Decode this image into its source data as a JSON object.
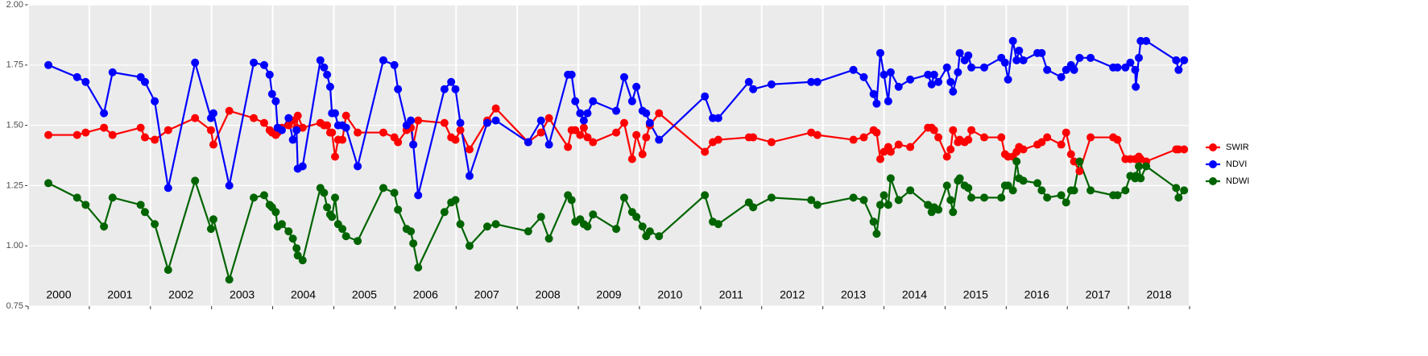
{
  "chart_data": {
    "type": "line",
    "x": [
      2000.33,
      2000.8,
      2000.94,
      2001.24,
      2001.38,
      2001.84,
      2001.91,
      2002.07,
      2002.29,
      2002.73,
      2002.99,
      2003.03,
      2003.29,
      2003.69,
      2003.86,
      2003.95,
      2003.99,
      2004.05,
      2004.08,
      2004.15,
      2004.26,
      2004.33,
      2004.39,
      2004.41,
      2004.49,
      2004.78,
      2004.84,
      2004.89,
      2004.94,
      2004.97,
      2005.02,
      2005.07,
      2005.14,
      2005.2,
      2005.39,
      2005.81,
      2005.99,
      2006.05,
      2006.19,
      2006.26,
      2006.3,
      2006.38,
      2006.81,
      2006.92,
      2006.99,
      2007.07,
      2007.22,
      2007.51,
      2007.65,
      2008.18,
      2008.39,
      2008.52,
      2008.83,
      2008.89,
      2008.95,
      2009.03,
      2009.09,
      2009.15,
      2009.24,
      2009.62,
      2009.75,
      2009.88,
      2009.95,
      2010.05,
      2010.11,
      2010.17,
      2010.32,
      2011.07,
      2011.2,
      2011.29,
      2011.79,
      2011.86,
      2012.16,
      2012.81,
      2012.91,
      2013.5,
      2013.67,
      2013.83,
      2013.88,
      2013.94,
      2014.0,
      2014.07,
      2014.11,
      2014.24,
      2014.43,
      2014.72,
      2014.78,
      2014.82,
      2014.89,
      2015.03,
      2015.09,
      2015.13,
      2015.21,
      2015.24,
      2015.32,
      2015.38,
      2015.43,
      2015.64,
      2015.92,
      2015.98,
      2016.03,
      2016.11,
      2016.17,
      2016.21,
      2016.28,
      2016.51,
      2016.58,
      2016.67,
      2016.9,
      2016.98,
      2017.06,
      2017.11,
      2017.2,
      2017.38,
      2017.75,
      2017.82,
      2017.95,
      2018.03,
      2018.11,
      2018.12,
      2018.17,
      2018.2,
      2018.29,
      2018.78,
      2018.82,
      2018.91
    ],
    "series": [
      {
        "name": "SWIR",
        "color": "#ff0000",
        "values": [
          1.46,
          1.46,
          1.47,
          1.49,
          1.46,
          1.49,
          1.45,
          1.44,
          1.48,
          1.53,
          1.48,
          1.42,
          1.56,
          1.53,
          1.51,
          1.48,
          1.47,
          1.46,
          1.47,
          1.49,
          1.5,
          1.52,
          1.49,
          1.54,
          1.49,
          1.51,
          1.5,
          1.5,
          1.47,
          1.47,
          1.37,
          1.44,
          1.44,
          1.54,
          1.47,
          1.47,
          1.45,
          1.43,
          1.48,
          1.49,
          1.42,
          1.52,
          1.51,
          1.45,
          1.44,
          1.48,
          1.4,
          1.52,
          1.57,
          1.43,
          1.47,
          1.53,
          1.41,
          1.48,
          1.48,
          1.46,
          1.49,
          1.45,
          1.43,
          1.47,
          1.51,
          1.36,
          1.46,
          1.38,
          1.45,
          1.5,
          1.55,
          1.39,
          1.43,
          1.44,
          1.45,
          1.45,
          1.43,
          1.47,
          1.46,
          1.44,
          1.45,
          1.48,
          1.47,
          1.36,
          1.39,
          1.41,
          1.39,
          1.42,
          1.41,
          1.49,
          1.49,
          1.48,
          1.45,
          1.37,
          1.4,
          1.48,
          1.43,
          1.44,
          1.43,
          1.44,
          1.48,
          1.45,
          1.45,
          1.38,
          1.37,
          1.37,
          1.39,
          1.41,
          1.4,
          1.42,
          1.43,
          1.45,
          1.42,
          1.47,
          1.38,
          1.35,
          1.31,
          1.45,
          1.45,
          1.44,
          1.36,
          1.36,
          1.36,
          1.36,
          1.37,
          1.36,
          1.35,
          1.4,
          1.4,
          1.4
        ]
      },
      {
        "name": "NDVI",
        "color": "#0000ff",
        "values": [
          1.75,
          1.7,
          1.68,
          1.55,
          1.72,
          1.7,
          1.68,
          1.6,
          1.24,
          1.76,
          1.53,
          1.55,
          1.25,
          1.76,
          1.75,
          1.71,
          1.63,
          1.6,
          1.49,
          1.48,
          1.53,
          1.44,
          1.48,
          1.32,
          1.33,
          1.77,
          1.74,
          1.71,
          1.66,
          1.55,
          1.55,
          1.5,
          1.5,
          1.49,
          1.33,
          1.77,
          1.75,
          1.65,
          1.5,
          1.52,
          1.42,
          1.21,
          1.65,
          1.68,
          1.65,
          1.51,
          1.29,
          1.51,
          1.52,
          1.43,
          1.52,
          1.42,
          1.71,
          1.71,
          1.6,
          1.55,
          1.52,
          1.55,
          1.6,
          1.56,
          1.7,
          1.6,
          1.66,
          1.56,
          1.55,
          1.51,
          1.44,
          1.62,
          1.53,
          1.53,
          1.68,
          1.65,
          1.67,
          1.68,
          1.68,
          1.73,
          1.7,
          1.63,
          1.59,
          1.8,
          1.71,
          1.6,
          1.72,
          1.66,
          1.69,
          1.71,
          1.67,
          1.71,
          1.68,
          1.74,
          1.68,
          1.64,
          1.72,
          1.8,
          1.77,
          1.79,
          1.74,
          1.74,
          1.78,
          1.76,
          1.69,
          1.85,
          1.77,
          1.81,
          1.77,
          1.8,
          1.8,
          1.73,
          1.7,
          1.73,
          1.75,
          1.73,
          1.78,
          1.78,
          1.74,
          1.74,
          1.74,
          1.76,
          1.73,
          1.66,
          1.78,
          1.85,
          1.85,
          1.77,
          1.73,
          1.77
        ]
      },
      {
        "name": "NDWI",
        "color": "#006400",
        "values": [
          1.26,
          1.2,
          1.17,
          1.08,
          1.2,
          1.17,
          1.14,
          1.09,
          0.9,
          1.27,
          1.07,
          1.11,
          0.86,
          1.2,
          1.21,
          1.17,
          1.16,
          1.14,
          1.08,
          1.09,
          1.06,
          1.03,
          0.99,
          0.96,
          0.94,
          1.24,
          1.22,
          1.16,
          1.13,
          1.12,
          1.2,
          1.09,
          1.07,
          1.04,
          1.02,
          1.24,
          1.22,
          1.15,
          1.07,
          1.06,
          1.01,
          0.91,
          1.14,
          1.18,
          1.19,
          1.09,
          1.0,
          1.08,
          1.09,
          1.06,
          1.12,
          1.03,
          1.21,
          1.19,
          1.1,
          1.11,
          1.09,
          1.08,
          1.13,
          1.07,
          1.2,
          1.14,
          1.12,
          1.08,
          1.04,
          1.06,
          1.04,
          1.21,
          1.1,
          1.09,
          1.18,
          1.16,
          1.2,
          1.19,
          1.17,
          1.2,
          1.19,
          1.1,
          1.05,
          1.17,
          1.21,
          1.17,
          1.28,
          1.19,
          1.23,
          1.17,
          1.14,
          1.16,
          1.15,
          1.25,
          1.19,
          1.14,
          1.27,
          1.28,
          1.25,
          1.24,
          1.2,
          1.2,
          1.2,
          1.25,
          1.25,
          1.23,
          1.35,
          1.28,
          1.27,
          1.26,
          1.23,
          1.2,
          1.21,
          1.18,
          1.23,
          1.23,
          1.35,
          1.23,
          1.21,
          1.21,
          1.23,
          1.29,
          1.28,
          1.29,
          1.33,
          1.28,
          1.33,
          1.24,
          1.2,
          1.23
        ]
      }
    ],
    "xlim": [
      2000,
      2019
    ],
    "xticks": [
      {
        "value": 2000.5,
        "label": "2000"
      },
      {
        "value": 2001.5,
        "label": "2001"
      },
      {
        "value": 2002.5,
        "label": "2002"
      },
      {
        "value": 2003.5,
        "label": "2003"
      },
      {
        "value": 2004.5,
        "label": "2004"
      },
      {
        "value": 2005.5,
        "label": "2005"
      },
      {
        "value": 2006.5,
        "label": "2006"
      },
      {
        "value": 2007.5,
        "label": "2007"
      },
      {
        "value": 2008.5,
        "label": "2008"
      },
      {
        "value": 2009.5,
        "label": "2009"
      },
      {
        "value": 2010.5,
        "label": "2010"
      },
      {
        "value": 2011.5,
        "label": "2011"
      },
      {
        "value": 2012.5,
        "label": "2012"
      },
      {
        "value": 2013.5,
        "label": "2013"
      },
      {
        "value": 2014.5,
        "label": "2014"
      },
      {
        "value": 2015.5,
        "label": "2015"
      },
      {
        "value": 2016.5,
        "label": "2016"
      },
      {
        "value": 2017.5,
        "label": "2017"
      },
      {
        "value": 2018.5,
        "label": "2018"
      }
    ],
    "xgrid": [
      2000,
      2001,
      2002,
      2003,
      2004,
      2005,
      2006,
      2007,
      2008,
      2009,
      2010,
      2011,
      2012,
      2013,
      2014,
      2015,
      2016,
      2017,
      2018,
      2019
    ],
    "ylim": [
      0.75,
      2
    ],
    "yticks": [
      {
        "value": 0.75,
        "label": "0.75"
      },
      {
        "value": 1,
        "label": "1.00"
      },
      {
        "value": 1.25,
        "label": "1.25"
      },
      {
        "value": 1.5,
        "label": "1.50"
      },
      {
        "value": 1.75,
        "label": "1.75"
      },
      {
        "value": 2,
        "label": "2.00"
      }
    ],
    "grid": true,
    "legend": "right"
  }
}
